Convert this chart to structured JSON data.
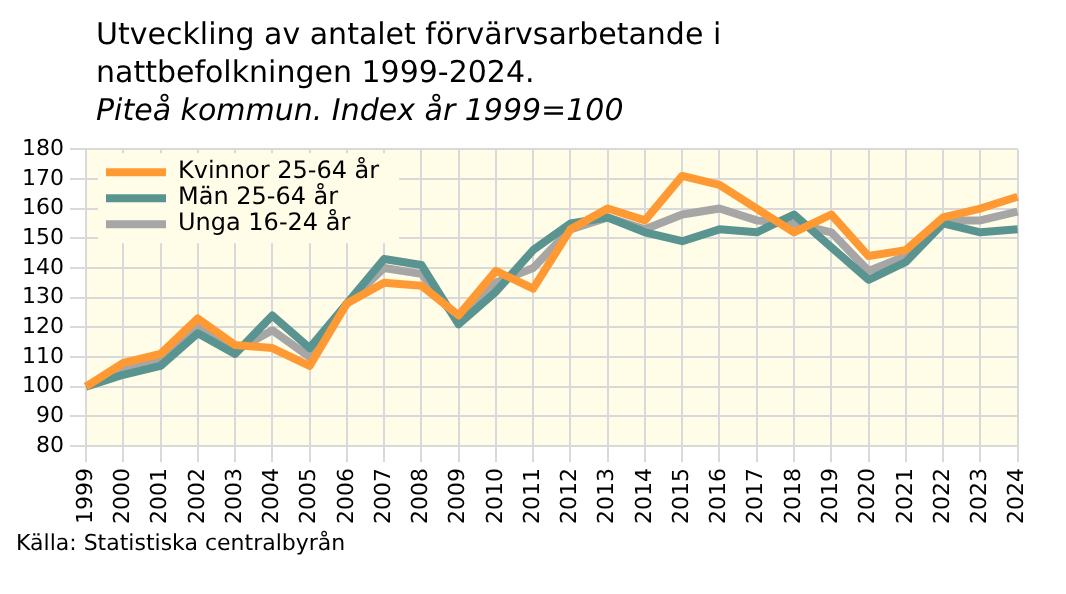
{
  "chart_data": {
    "type": "line",
    "title": "Utveckling av antalet förvärvsarbetande i nattbefolkningen 1999-2024.",
    "subtitle": "Piteå kommun. Index år 1999=100",
    "annotations": [
      "Källa: Statistiska centralbyrån"
    ],
    "categories": [
      "1999",
      "2000",
      "2001",
      "2002",
      "2003",
      "2004",
      "2005",
      "2006",
      "2007",
      "2008",
      "2009",
      "2010",
      "2011",
      "2012",
      "2013",
      "2014",
      "2015",
      "2016",
      "2017",
      "2018",
      "2019",
      "2020",
      "2021",
      "2022",
      "2023",
      "2024"
    ],
    "series": [
      {
        "name": "Kvinnor 25-64 år",
        "color": "#ff9933",
        "values": [
          100,
          108,
          111,
          123,
          114,
          113,
          107,
          128,
          135,
          134,
          124,
          139,
          133,
          153,
          160,
          156,
          171,
          168,
          160,
          152,
          158,
          144,
          146,
          157,
          160,
          164
        ]
      },
      {
        "name": "Män 25-64 år",
        "color": "#5a9490",
        "values": [
          100,
          104,
          107,
          118,
          111,
          124,
          113,
          128,
          143,
          141,
          121,
          132,
          146,
          155,
          157,
          152,
          149,
          153,
          152,
          158,
          147,
          136,
          142,
          155,
          152,
          153
        ]
      },
      {
        "name": "Unga 16-24 år",
        "color": "#a6a6a6",
        "values": [
          100,
          106,
          109,
          121,
          112,
          119,
          110,
          128,
          140,
          138,
          122,
          135,
          140,
          153,
          157,
          153,
          158,
          160,
          156,
          155,
          152,
          139,
          144,
          156,
          156,
          159
        ]
      }
    ],
    "ylim": [
      80,
      180
    ],
    "yticks": [
      80,
      90,
      100,
      110,
      120,
      130,
      140,
      150,
      160,
      170,
      180
    ],
    "grid": true,
    "legend": "top left",
    "marker": "none",
    "line_style": "solid"
  }
}
